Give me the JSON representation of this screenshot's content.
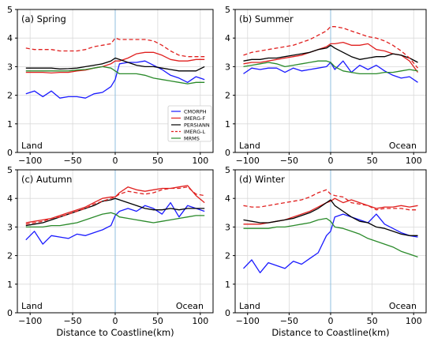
{
  "figure": {
    "xlabel": "Distance to Coastline(km)",
    "legend_location": "lower-right of panel (a)",
    "colors": {
      "CMORPH": "#1a1aff",
      "IMERG-F": "#e0201f",
      "PERSIANN": "#000000",
      "IMERG-L": "#e0201f",
      "MRMS": "#2a8a2a",
      "coast_line": "#8fbfdf",
      "grid": "#d9d9d9"
    }
  },
  "chart_data": [
    {
      "type": "line",
      "title": "(a) Spring",
      "left_annotation": "Land",
      "right_annotation": "",
      "xlim": [
        -115,
        115
      ],
      "ylim": [
        0,
        5
      ],
      "xticks": [
        -100,
        -50,
        0,
        50,
        100
      ],
      "yticks": [
        0,
        1,
        2,
        3,
        4,
        5
      ],
      "grid": true,
      "x": [
        -105,
        -95,
        -85,
        -75,
        -65,
        -55,
        -45,
        -35,
        -25,
        -15,
        -5,
        0,
        5,
        15,
        25,
        35,
        45,
        55,
        65,
        75,
        85,
        95,
        105
      ],
      "series": [
        {
          "name": "CMORPH",
          "style": "solid",
          "values": [
            2.05,
            2.15,
            1.95,
            2.15,
            1.9,
            1.95,
            1.95,
            1.9,
            2.05,
            2.1,
            2.3,
            2.55,
            3.1,
            3.15,
            3.15,
            3.2,
            3.05,
            2.9,
            2.7,
            2.6,
            2.45,
            2.65,
            2.55
          ]
        },
        {
          "name": "IMERG-F",
          "style": "solid",
          "values": [
            2.8,
            2.8,
            2.8,
            2.78,
            2.8,
            2.8,
            2.85,
            2.88,
            2.95,
            3.0,
            3.1,
            3.2,
            3.2,
            3.3,
            3.45,
            3.5,
            3.5,
            3.4,
            3.25,
            3.2,
            3.2,
            3.25,
            3.25
          ]
        },
        {
          "name": "PERSIANN",
          "style": "solid",
          "values": [
            2.95,
            2.95,
            2.95,
            2.95,
            2.92,
            2.93,
            2.95,
            3.0,
            3.05,
            3.1,
            3.2,
            3.3,
            3.25,
            3.15,
            3.05,
            3.0,
            3.0,
            2.95,
            2.9,
            2.85,
            2.85,
            2.85,
            3.0
          ]
        },
        {
          "name": "IMERG-L",
          "style": "dashed",
          "values": [
            3.65,
            3.6,
            3.6,
            3.6,
            3.55,
            3.55,
            3.55,
            3.6,
            3.7,
            3.75,
            3.8,
            4.0,
            3.95,
            3.95,
            3.95,
            3.95,
            3.9,
            3.75,
            3.55,
            3.4,
            3.35,
            3.35,
            3.35
          ]
        },
        {
          "name": "MRMS",
          "style": "solid",
          "values": [
            2.85,
            2.85,
            2.85,
            2.85,
            2.85,
            2.85,
            2.88,
            2.9,
            2.95,
            3.0,
            2.95,
            2.85,
            2.75,
            2.75,
            2.75,
            2.7,
            2.6,
            2.55,
            2.5,
            2.45,
            2.4,
            2.45,
            2.45
          ]
        }
      ]
    },
    {
      "type": "line",
      "title": "(b) Summer",
      "left_annotation": "Land",
      "right_annotation": "Ocean",
      "xlim": [
        -115,
        115
      ],
      "ylim": [
        0,
        5
      ],
      "xticks": [
        -100,
        -50,
        0,
        50,
        100
      ],
      "yticks": [
        0,
        1,
        2,
        3,
        4,
        5
      ],
      "grid": true,
      "x": [
        -105,
        -95,
        -85,
        -75,
        -65,
        -55,
        -45,
        -35,
        -25,
        -15,
        -5,
        0,
        5,
        15,
        25,
        35,
        45,
        55,
        65,
        75,
        85,
        95,
        105
      ],
      "series": [
        {
          "name": "CMORPH",
          "style": "solid",
          "values": [
            2.75,
            2.95,
            2.9,
            2.95,
            2.95,
            2.8,
            2.95,
            2.85,
            2.9,
            2.95,
            3.0,
            3.15,
            2.9,
            3.2,
            2.8,
            3.05,
            2.9,
            3.05,
            2.85,
            2.7,
            2.6,
            2.65,
            2.45
          ]
        },
        {
          "name": "IMERG-F",
          "style": "solid",
          "values": [
            3.1,
            3.15,
            3.15,
            3.2,
            3.25,
            3.3,
            3.35,
            3.4,
            3.5,
            3.6,
            3.7,
            3.8,
            3.8,
            3.85,
            3.75,
            3.75,
            3.8,
            3.6,
            3.55,
            3.45,
            3.4,
            3.2,
            2.8
          ]
        },
        {
          "name": "PERSIANN",
          "style": "solid",
          "values": [
            3.2,
            3.25,
            3.25,
            3.3,
            3.3,
            3.35,
            3.4,
            3.45,
            3.5,
            3.6,
            3.65,
            3.75,
            3.65,
            3.5,
            3.35,
            3.25,
            3.3,
            3.35,
            3.35,
            3.45,
            3.4,
            3.3,
            3.15
          ]
        },
        {
          "name": "IMERG-L",
          "style": "dashed",
          "values": [
            3.4,
            3.5,
            3.55,
            3.6,
            3.65,
            3.7,
            3.75,
            3.85,
            3.95,
            4.1,
            4.25,
            4.4,
            4.4,
            4.35,
            4.25,
            4.15,
            4.05,
            4.0,
            3.9,
            3.75,
            3.55,
            3.3,
            2.95
          ]
        },
        {
          "name": "MRMS",
          "style": "solid",
          "values": [
            3.0,
            3.05,
            3.1,
            3.15,
            3.1,
            3.0,
            3.05,
            3.1,
            3.15,
            3.2,
            3.2,
            3.15,
            3.0,
            2.85,
            2.8,
            2.75,
            2.75,
            2.75,
            2.8,
            2.8,
            2.85,
            2.9,
            2.85
          ]
        }
      ]
    },
    {
      "type": "line",
      "title": "(c) Autumn",
      "left_annotation": "Land",
      "right_annotation": "Ocean",
      "xlim": [
        -115,
        115
      ],
      "ylim": [
        0,
        5
      ],
      "xticks": [
        -100,
        -50,
        0,
        50,
        100
      ],
      "yticks": [
        0,
        1,
        2,
        3,
        4,
        5
      ],
      "grid": true,
      "x": [
        -105,
        -95,
        -85,
        -75,
        -65,
        -55,
        -45,
        -35,
        -25,
        -15,
        -5,
        0,
        5,
        15,
        25,
        35,
        45,
        55,
        65,
        75,
        85,
        95,
        105
      ],
      "series": [
        {
          "name": "CMORPH",
          "style": "solid",
          "values": [
            2.55,
            2.85,
            2.4,
            2.7,
            2.65,
            2.6,
            2.75,
            2.7,
            2.8,
            2.9,
            3.05,
            3.4,
            3.55,
            3.65,
            3.55,
            3.75,
            3.65,
            3.45,
            3.85,
            3.35,
            3.75,
            3.65,
            3.55
          ]
        },
        {
          "name": "IMERG-F",
          "style": "solid",
          "values": [
            3.15,
            3.2,
            3.25,
            3.3,
            3.4,
            3.5,
            3.6,
            3.7,
            3.85,
            4.0,
            4.05,
            4.05,
            4.2,
            4.4,
            4.3,
            4.25,
            4.3,
            4.35,
            4.35,
            4.4,
            4.45,
            4.1,
            3.85
          ]
        },
        {
          "name": "PERSIANN",
          "style": "solid",
          "values": [
            3.05,
            3.1,
            3.15,
            3.25,
            3.35,
            3.45,
            3.55,
            3.65,
            3.75,
            3.9,
            3.95,
            4.0,
            3.95,
            3.85,
            3.75,
            3.65,
            3.6,
            3.6,
            3.65,
            3.6,
            3.65,
            3.65,
            3.65
          ]
        },
        {
          "name": "IMERG-L",
          "style": "dashed",
          "values": [
            3.1,
            3.15,
            3.2,
            3.3,
            3.35,
            3.45,
            3.55,
            3.65,
            3.8,
            3.9,
            4.0,
            4.05,
            4.15,
            4.25,
            4.2,
            4.15,
            4.2,
            4.3,
            4.35,
            4.35,
            4.4,
            4.15,
            4.1
          ]
        },
        {
          "name": "MRMS",
          "style": "solid",
          "values": [
            3.0,
            3.0,
            3.0,
            3.05,
            3.05,
            3.1,
            3.15,
            3.25,
            3.35,
            3.45,
            3.5,
            3.45,
            3.35,
            3.3,
            3.25,
            3.2,
            3.15,
            3.2,
            3.25,
            3.3,
            3.35,
            3.4,
            3.4
          ]
        }
      ]
    },
    {
      "type": "line",
      "title": "(d) Winter",
      "left_annotation": "Land",
      "right_annotation": "Ocean",
      "xlim": [
        -115,
        115
      ],
      "ylim": [
        0,
        5
      ],
      "xticks": [
        -100,
        -50,
        0,
        50,
        100
      ],
      "yticks": [
        0,
        1,
        2,
        3,
        4,
        5
      ],
      "grid": true,
      "x": [
        -105,
        -95,
        -85,
        -75,
        -65,
        -55,
        -45,
        -35,
        -25,
        -15,
        -5,
        0,
        5,
        15,
        25,
        35,
        45,
        55,
        65,
        75,
        85,
        95,
        105
      ],
      "series": [
        {
          "name": "CMORPH",
          "style": "solid",
          "values": [
            1.55,
            1.85,
            1.4,
            1.75,
            1.65,
            1.55,
            1.8,
            1.7,
            1.9,
            2.1,
            2.7,
            2.85,
            3.35,
            3.45,
            3.35,
            3.25,
            3.15,
            3.45,
            3.1,
            2.95,
            2.8,
            2.7,
            2.65
          ]
        },
        {
          "name": "IMERG-F",
          "style": "solid",
          "values": [
            3.1,
            3.1,
            3.1,
            3.15,
            3.2,
            3.25,
            3.35,
            3.45,
            3.55,
            3.7,
            3.85,
            3.9,
            4.0,
            3.85,
            3.95,
            3.85,
            3.75,
            3.65,
            3.7,
            3.7,
            3.75,
            3.7,
            3.75
          ]
        },
        {
          "name": "PERSIANN",
          "style": "solid",
          "values": [
            3.25,
            3.2,
            3.15,
            3.15,
            3.2,
            3.25,
            3.3,
            3.4,
            3.5,
            3.65,
            3.85,
            3.95,
            3.75,
            3.55,
            3.35,
            3.2,
            3.15,
            3.0,
            2.95,
            2.85,
            2.75,
            2.7,
            2.7
          ]
        },
        {
          "name": "IMERG-L",
          "style": "dashed",
          "values": [
            3.75,
            3.7,
            3.7,
            3.75,
            3.8,
            3.85,
            3.9,
            3.95,
            4.05,
            4.2,
            4.3,
            4.15,
            4.1,
            4.05,
            3.85,
            3.8,
            3.75,
            3.6,
            3.65,
            3.65,
            3.65,
            3.6,
            3.6
          ]
        },
        {
          "name": "MRMS",
          "style": "solid",
          "values": [
            2.95,
            2.95,
            2.95,
            2.95,
            3.0,
            3.0,
            3.05,
            3.1,
            3.15,
            3.25,
            3.3,
            3.2,
            3.0,
            2.95,
            2.85,
            2.75,
            2.6,
            2.5,
            2.4,
            2.3,
            2.15,
            2.05,
            1.95
          ]
        }
      ]
    }
  ]
}
